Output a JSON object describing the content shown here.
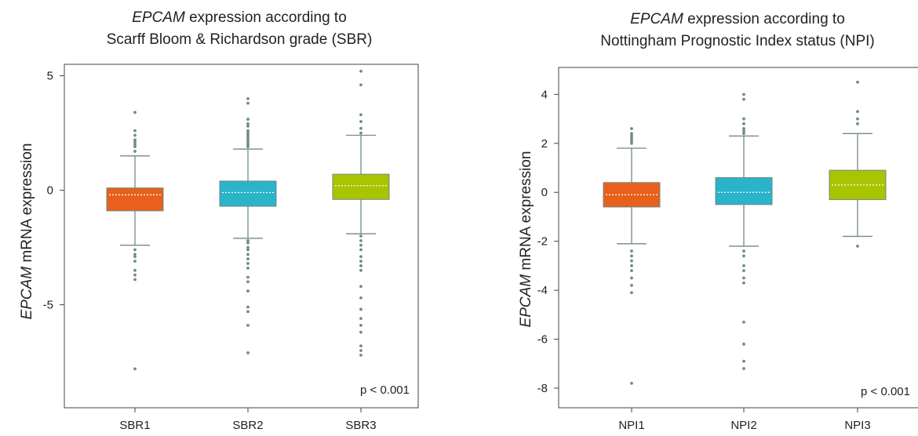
{
  "chart_data": [
    {
      "type": "box",
      "title_italic": "EPCAM",
      "title_rest": " expression according to",
      "title_line2": "Scarff Bloom & Richardson grade (SBR)",
      "ylabel_italic": "EPCAM",
      "ylabel_rest": " mRNA expression",
      "ylim": [
        -9.5,
        5.5
      ],
      "yticks": [
        5,
        0,
        -5
      ],
      "ytick_labels": [
        "5",
        "0",
        "-5"
      ],
      "annotation": "p < 0.001",
      "categories": [
        "SBR1",
        "SBR2",
        "SBR3"
      ],
      "boxes": [
        {
          "name": "SBR1",
          "color": "#e8601c",
          "whisker_low": -2.4,
          "q1": -0.9,
          "median": -0.2,
          "q3": 0.1,
          "whisker_high": 1.5,
          "outliers": [
            3.4,
            2.6,
            2.4,
            2.2,
            2.1,
            2.0,
            1.9,
            1.7,
            -2.6,
            -2.8,
            -2.9,
            -3.1,
            -3.5,
            -3.7,
            -3.9,
            -7.8
          ]
        },
        {
          "name": "SBR2",
          "color": "#29b4c9",
          "whisker_low": -2.1,
          "q1": -0.7,
          "median": -0.1,
          "q3": 0.4,
          "whisker_high": 1.8,
          "outliers": [
            4.0,
            3.8,
            3.1,
            2.9,
            2.8,
            2.6,
            2.5,
            2.4,
            2.3,
            2.2,
            2.1,
            2.0,
            1.9,
            -2.2,
            -2.3,
            -2.5,
            -2.6,
            -2.8,
            -3.0,
            -3.2,
            -3.4,
            -3.8,
            -4.0,
            -4.4,
            -5.1,
            -5.3,
            -5.9,
            -7.1
          ]
        },
        {
          "name": "SBR3",
          "color": "#a9c400",
          "whisker_low": -1.9,
          "q1": -0.4,
          "median": 0.2,
          "q3": 0.7,
          "whisker_high": 2.4,
          "outliers": [
            5.2,
            4.6,
            3.3,
            3.0,
            2.7,
            2.5,
            -2.0,
            -2.2,
            -2.4,
            -2.6,
            -2.9,
            -3.1,
            -3.3,
            -3.5,
            -4.2,
            -4.7,
            -5.2,
            -5.6,
            -5.9,
            -6.2,
            -6.8,
            -7.0,
            -7.2
          ]
        }
      ]
    },
    {
      "type": "box",
      "title_italic": "EPCAM",
      "title_rest": " expression according to",
      "title_line2": "Nottingham Prognostic Index status (NPI)",
      "ylabel_italic": "EPCAM",
      "ylabel_rest": " mRNA expression",
      "ylim": [
        -8.8,
        5.1
      ],
      "yticks": [
        4,
        2,
        0,
        -2,
        -4,
        -6,
        -8
      ],
      "ytick_labels": [
        "4",
        "2",
        "0",
        "-2",
        "-4",
        "-6",
        "-8"
      ],
      "annotation": "p < 0.001",
      "categories": [
        "NPI1",
        "NPI2",
        "NPI3"
      ],
      "boxes": [
        {
          "name": "NPI1",
          "color": "#e8601c",
          "whisker_low": -2.1,
          "q1": -0.6,
          "median": -0.1,
          "q3": 0.4,
          "whisker_high": 1.8,
          "outliers": [
            2.6,
            2.4,
            2.3,
            2.2,
            2.1,
            2.0,
            -2.4,
            -2.6,
            -2.8,
            -3.0,
            -3.2,
            -3.5,
            -3.8,
            -4.1,
            -7.8
          ]
        },
        {
          "name": "NPI2",
          "color": "#29b4c9",
          "whisker_low": -2.2,
          "q1": -0.5,
          "median": 0.0,
          "q3": 0.6,
          "whisker_high": 2.3,
          "outliers": [
            4.0,
            3.8,
            3.0,
            2.8,
            2.6,
            2.5,
            2.4,
            -2.4,
            -2.6,
            -3.0,
            -3.2,
            -3.5,
            -3.7,
            -5.3,
            -6.2,
            -6.9,
            -7.2
          ]
        },
        {
          "name": "NPI3",
          "color": "#a9c400",
          "whisker_low": -1.8,
          "q1": -0.3,
          "median": 0.3,
          "q3": 0.9,
          "whisker_high": 2.4,
          "outliers": [
            4.5,
            3.3,
            3.0,
            2.8,
            -2.2
          ]
        }
      ]
    }
  ]
}
